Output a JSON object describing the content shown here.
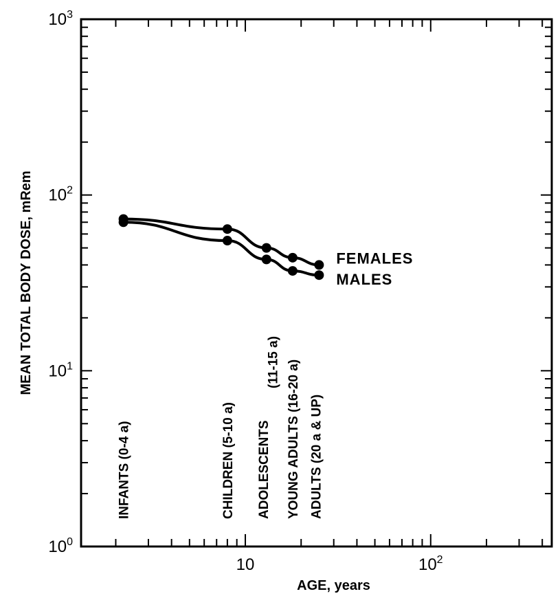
{
  "chart_data": {
    "type": "line",
    "title": "",
    "xlabel": "AGE, years",
    "ylabel": "MEAN TOTAL BODY DOSE, mRem",
    "xscale": "log",
    "yscale": "log",
    "xlim": [
      1.3,
      450
    ],
    "ylim": [
      1,
      1000
    ],
    "grid": false,
    "legend": "inline labels at right end of curves",
    "x_ticks": [
      {
        "value": 10,
        "base": "10",
        "exp": ""
      },
      {
        "value": 100,
        "base": "10",
        "exp": "2"
      }
    ],
    "y_ticks": [
      {
        "value": 1,
        "base": "10",
        "exp": "0"
      },
      {
        "value": 10,
        "base": "10",
        "exp": "1"
      },
      {
        "value": 100,
        "base": "10",
        "exp": "2"
      },
      {
        "value": 1000,
        "base": "10",
        "exp": "3"
      }
    ],
    "series": [
      {
        "name": "FEMALES",
        "x": [
          2.2,
          8,
          13,
          18,
          25
        ],
        "y": [
          73,
          64,
          50,
          44,
          40
        ]
      },
      {
        "name": "MALES",
        "x": [
          2.2,
          8,
          13,
          18,
          25
        ],
        "y": [
          70,
          55,
          43,
          37,
          35
        ]
      }
    ],
    "group_labels": [
      {
        "text": "INFANTS (0-4 a)",
        "x": 2.2
      },
      {
        "text": "CHILDREN (5-10 a)",
        "x": 8
      },
      {
        "text": "ADOLESCENTS",
        "x": 12.5
      },
      {
        "text": "(11-15 a)",
        "x": 14
      },
      {
        "text": "YOUNG ADULTS (16-20 a)",
        "x": 18
      },
      {
        "text": "ADULTS (20 a & UP)",
        "x": 24
      }
    ]
  }
}
